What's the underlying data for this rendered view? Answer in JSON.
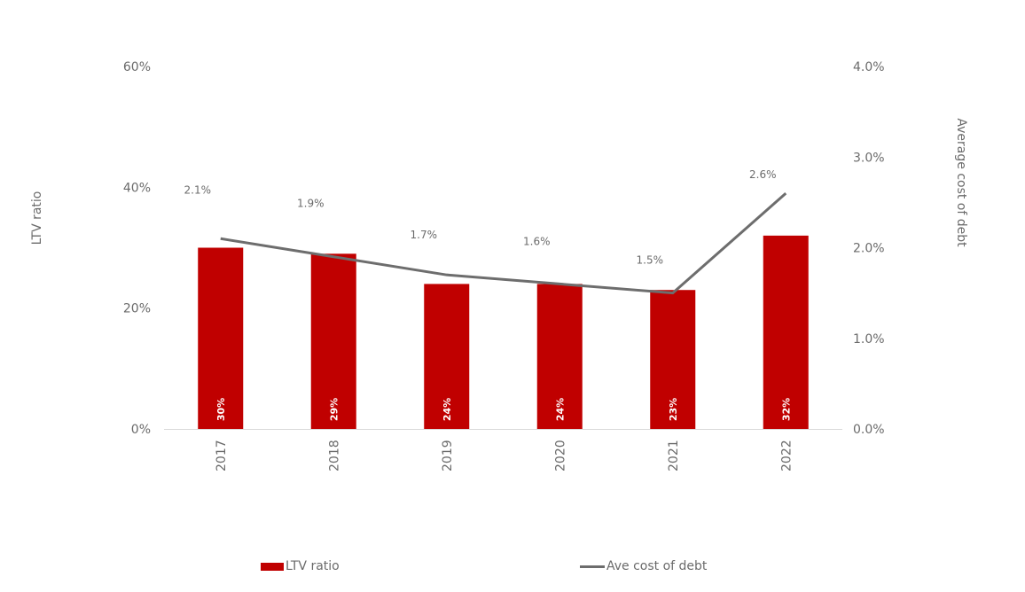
{
  "chart_data": {
    "type": "bar",
    "categories": [
      "2017",
      "2018",
      "2019",
      "2020",
      "2021",
      "2022"
    ],
    "series": [
      {
        "name": "LTV ratio",
        "kind": "bar",
        "axis": "left",
        "values": [
          30,
          29,
          24,
          24,
          23,
          32
        ],
        "labels": [
          "30%",
          "29%",
          "24%",
          "24%",
          "23%",
          "32%"
        ],
        "color": "#c00000"
      },
      {
        "name": "Ave cost of debt",
        "kind": "line",
        "axis": "right",
        "values": [
          2.1,
          1.9,
          1.7,
          1.6,
          1.5,
          2.6
        ],
        "labels": [
          "2.1%",
          "1.9%",
          "1.7%",
          "1.6%",
          "1.5%",
          "2.6%"
        ],
        "color": "#6d6d6d"
      }
    ],
    "ylabel": "LTV ratio",
    "y2label": "Average cost of debt",
    "ylim": [
      0,
      60
    ],
    "y2lim": [
      0,
      4.0
    ],
    "yticks": [
      "0%",
      "20%",
      "40%",
      "60%"
    ],
    "y2ticks": [
      "0.0%",
      "1.0%",
      "2.0%",
      "3.0%",
      "4.0%"
    ],
    "grid": false,
    "legend_position": "bottom"
  }
}
